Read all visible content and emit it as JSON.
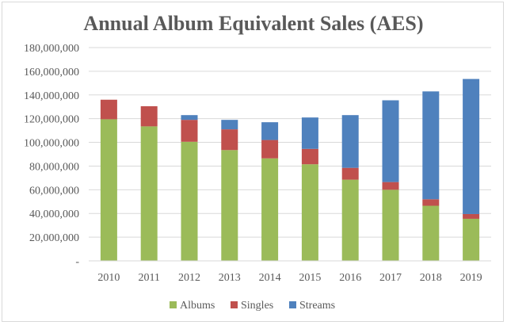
{
  "chart_data": {
    "type": "bar",
    "stacked": true,
    "title": "Annual Album Equivalent Sales (AES)",
    "xlabel": "",
    "ylabel": "",
    "categories": [
      "2010",
      "2011",
      "2012",
      "2013",
      "2014",
      "2015",
      "2016",
      "2017",
      "2018",
      "2019"
    ],
    "series": [
      {
        "name": "Albums",
        "color": "#9bbb59",
        "values": [
          119500000,
          113500000,
          100500000,
          93500000,
          86500000,
          81500000,
          68500000,
          60000000,
          46500000,
          35500000
        ]
      },
      {
        "name": "Singles",
        "color": "#c0504d",
        "values": [
          16500000,
          17000000,
          18500000,
          17500000,
          15500000,
          13000000,
          10000000,
          6500000,
          5500000,
          4000000
        ]
      },
      {
        "name": "Streams",
        "color": "#4f81bd",
        "values": [
          0,
          0,
          4000000,
          8000000,
          15000000,
          26500000,
          44500000,
          69000000,
          91000000,
          114000000
        ]
      }
    ],
    "ylim": [
      0,
      180000000
    ],
    "yticks": [
      "-",
      "20,000,000",
      "40,000,000",
      "60,000,000",
      "80,000,000",
      "100,000,000",
      "120,000,000",
      "140,000,000",
      "160,000,000",
      "180,000,000"
    ],
    "grid": true,
    "legend": "bottom"
  }
}
